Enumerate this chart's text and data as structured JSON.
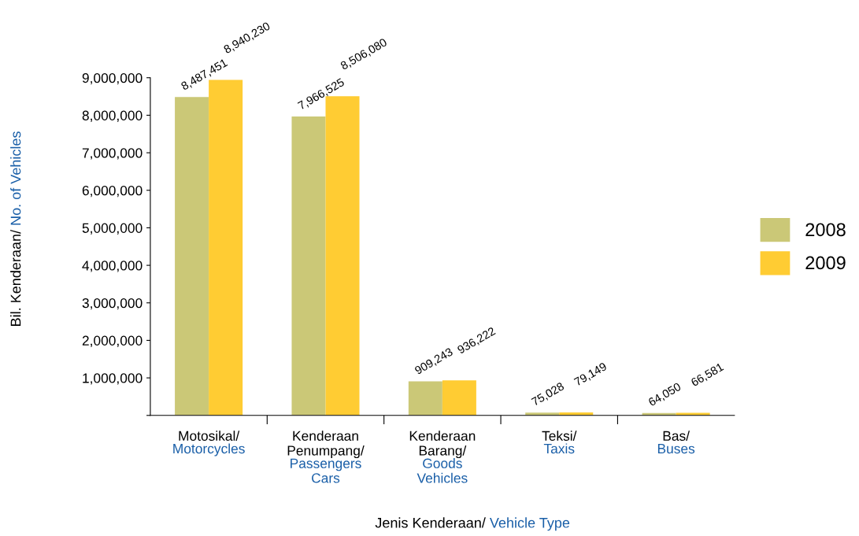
{
  "chart_data": {
    "type": "bar",
    "xlabel": "Jenis Kenderaan/ Vehicle Type",
    "ylabel": "Bil. Kenderaan/ No. of Vehicles",
    "categories": [
      "Motosikal/\nMotorcycles",
      "Kenderaan\nPenumpang/\nPassengers\nCars",
      "Kenderaan\nBarang/\nGoods\nVehicles",
      "Teksi/\nTaxis",
      "Bas/\nBuses"
    ],
    "series": [
      {
        "name": "2008",
        "color": "#cbc877",
        "values": [
          8487451,
          7966525,
          909243,
          75028,
          64050
        ],
        "value_labels": [
          "8,487,451",
          "7,966,525",
          "909,243",
          "75,028",
          "64,050"
        ]
      },
      {
        "name": "2009",
        "color": "#ffcc33",
        "values": [
          8940230,
          8506080,
          936222,
          79149,
          66581
        ],
        "value_labels": [
          "8,940,230",
          "8,506,080",
          "936,222",
          "79,149",
          "66,581"
        ]
      }
    ],
    "ylim": [
      0,
      9000000
    ],
    "yticks": [
      {
        "value": 0,
        "label": null
      },
      {
        "value": 1000000,
        "label": "1,000,000"
      },
      {
        "value": 2000000,
        "label": "2,000,000"
      },
      {
        "value": 3000000,
        "label": "3,000,000"
      },
      {
        "value": 4000000,
        "label": "4,000,000"
      },
      {
        "value": 5000000,
        "label": "5,000,000"
      },
      {
        "value": 6000000,
        "label": "6,000,000"
      },
      {
        "value": 7000000,
        "label": "7,000,000"
      },
      {
        "value": 8000000,
        "label": "8,000,000"
      },
      {
        "value": 9000000,
        "label": "9,000,000"
      }
    ],
    "legend": "center right",
    "grid": false
  }
}
